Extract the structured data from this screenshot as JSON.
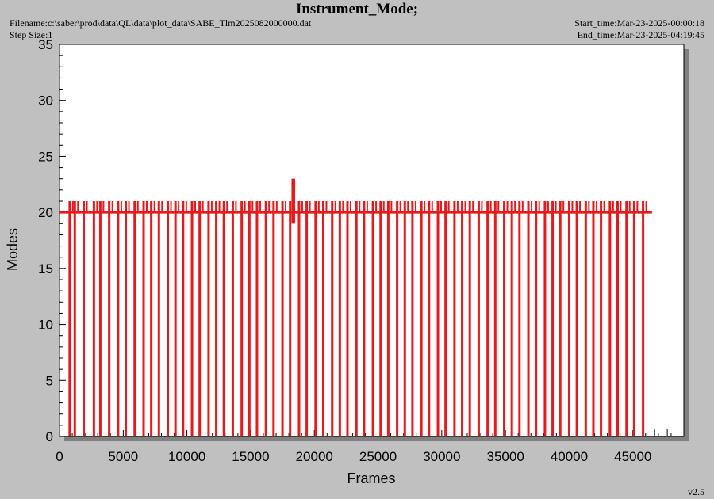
{
  "header": {
    "title": "Instrument_Mode;",
    "filename": "Filename:c:\\saber\\prod\\data\\QL\\data\\plot_data\\SABE_Tlm2025082000000.dat",
    "step_size": "Step Size:1",
    "start_time": "Start_time:Mar-23-2025-00:00:18",
    "end_time": "End_time:Mar-23-2025-04:19:45"
  },
  "footer": {
    "version": "v2.5"
  },
  "colors": {
    "series": "#e41a1c",
    "plot_bg": "#ffffff",
    "page_bg": "#c0c0c0",
    "shadow": "#808080"
  },
  "chart_data": {
    "type": "line",
    "title": "Instrument_Mode;",
    "xlabel": "Frames",
    "ylabel": "Modes",
    "xlim": [
      0,
      49000
    ],
    "ylim": [
      0,
      35
    ],
    "xticks": [
      0,
      5000,
      10000,
      15000,
      20000,
      25000,
      30000,
      35000,
      40000,
      45000
    ],
    "yticks": [
      0,
      5,
      10,
      15,
      20,
      25,
      30,
      35
    ],
    "grid": false,
    "baseline_mode": 20,
    "series": [
      {
        "x_start": 0,
        "x_end": 46500,
        "dip_frames": [
          800,
          1200,
          1900,
          2700,
          3200,
          3900,
          4600,
          5200,
          5900,
          6600,
          7200,
          7800,
          8500,
          9100,
          9700,
          10400,
          11000,
          11700,
          12300,
          12900,
          13600,
          14300,
          14900,
          15500,
          16200,
          16800,
          17500,
          18100,
          18800,
          19400,
          20100,
          20700,
          21400,
          22000,
          22600,
          23300,
          23900,
          24600,
          25200,
          25800,
          26500,
          27100,
          27700,
          28400,
          29000,
          29700,
          30300,
          31000,
          31600,
          32200,
          32900,
          33600,
          34200,
          34900,
          35500,
          36100,
          36800,
          37400,
          38100,
          38700,
          39300,
          40000,
          40600,
          41300,
          41900,
          42500,
          43200,
          43800,
          44500,
          45100,
          45800
        ],
        "spike_frames": [
          18300,
          18400
        ],
        "spike_value": 23,
        "high_value": 21
      }
    ],
    "extra_ticks_bottom": [
      46700,
      47700
    ]
  }
}
